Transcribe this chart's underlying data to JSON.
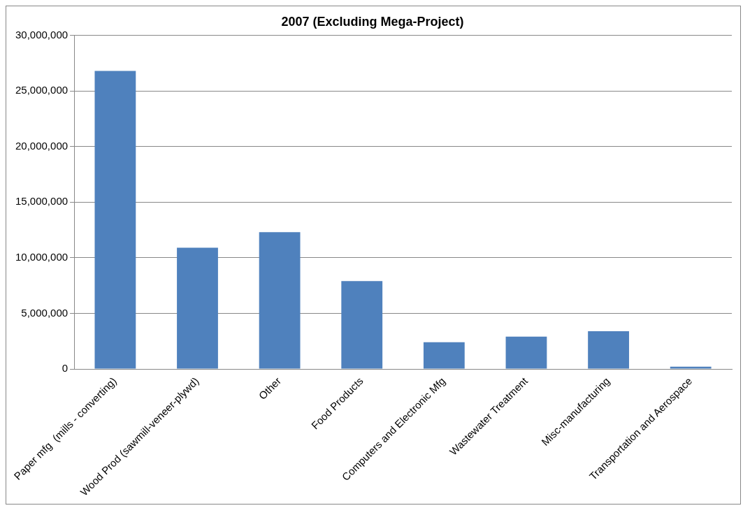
{
  "chart_data": {
    "type": "bar",
    "title": "2007 (Excluding Mega-Project)",
    "categories": [
      "Paper mfg  (mills - converting)",
      "Wood Prod (sawmill-veneer-plywd)",
      "Other",
      "Food Products",
      "Computers and Electronic Mfg",
      "Wastewater Treatment",
      "Misc-manufacturing",
      "Transportation and Aerospace"
    ],
    "values": [
      26800000,
      10900000,
      12300000,
      7900000,
      2400000,
      2900000,
      3400000,
      200000
    ],
    "color": "#4f81bd",
    "ylim": [
      0,
      30000000
    ],
    "yticks": [
      0,
      {
        "value": 5000000,
        "label": "5,000,000"
      },
      {
        "value": 10000000,
        "label": "10,000,000"
      },
      {
        "value": 15000000,
        "label": "15,000,000"
      },
      {
        "value": 20000000,
        "label": "20,000,000"
      },
      {
        "value": 25000000,
        "label": "25,000,000"
      },
      {
        "value": 30000000,
        "label": "30,000,000"
      }
    ],
    "grid": "y"
  }
}
